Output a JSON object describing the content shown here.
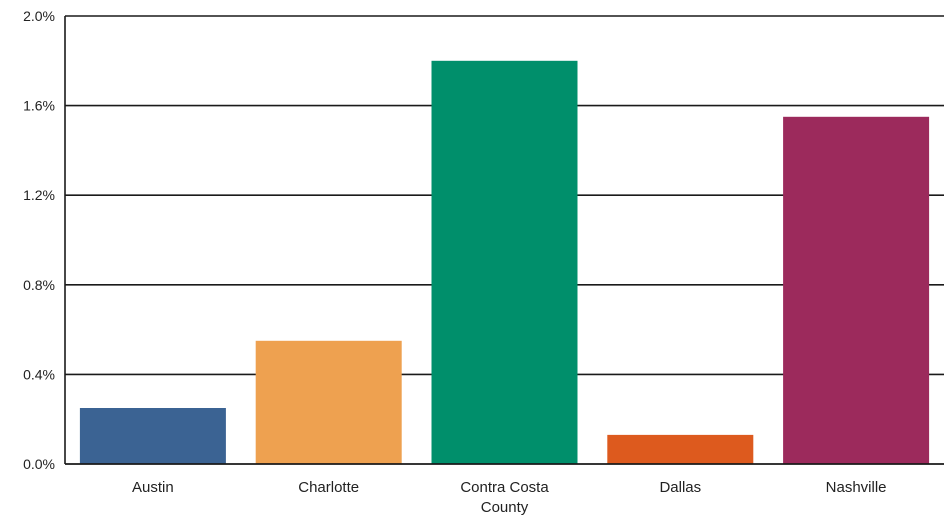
{
  "chart_data": {
    "type": "bar",
    "title": "",
    "xlabel": "",
    "ylabel": "",
    "categories": [
      [
        "Austin"
      ],
      [
        "Charlotte"
      ],
      [
        "Contra Costa",
        "County"
      ],
      [
        "Dallas"
      ],
      [
        "Nashville"
      ]
    ],
    "values": [
      0.25,
      0.55,
      1.8,
      0.13,
      1.55
    ],
    "colors": [
      "#3B6393",
      "#EEA150",
      "#008F6B",
      "#DD5A1E",
      "#9C2A5C"
    ],
    "ylim": [
      0,
      2.0
    ],
    "yticks": [
      0.0,
      0.4,
      0.8,
      1.2,
      1.6,
      2.0
    ],
    "ytick_labels": [
      "0.0%",
      "0.4%",
      "0.8%",
      "1.2%",
      "1.6%",
      "2.0%"
    ],
    "grid": true,
    "legend": "none"
  }
}
